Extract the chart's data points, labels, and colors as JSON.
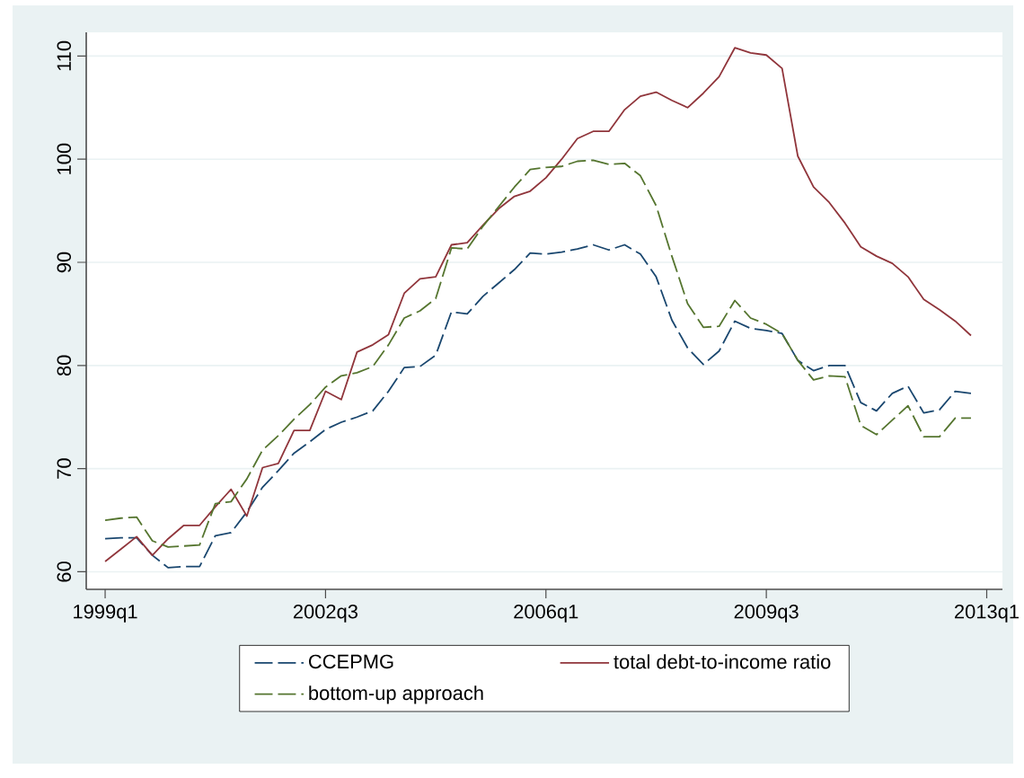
{
  "chart_data": {
    "type": "line",
    "x": [
      "1999-01",
      "1999-04",
      "1999-07",
      "1999-10",
      "2000-01",
      "2000-04",
      "2000-07",
      "2000-10",
      "2001-01",
      "2001-04",
      "2001-07",
      "2001-10",
      "2002-01",
      "2002-04",
      "2002-07",
      "2002-10",
      "2003-01",
      "2003-04",
      "2003-07",
      "2003-10",
      "2004-01",
      "2004-04",
      "2004-07",
      "2004-10",
      "2005-01",
      "2005-04",
      "2005-07",
      "2005-10",
      "2006-01",
      "2006-04",
      "2006-07",
      "2006-10",
      "2007-01",
      "2007-04",
      "2007-07",
      "2007-10",
      "2008-01",
      "2008-04",
      "2008-07",
      "2008-10",
      "2009-01",
      "2009-04",
      "2009-07",
      "2009-10",
      "2010-01",
      "2010-04",
      "2010-07",
      "2010-10",
      "2011-01",
      "2011-04",
      "2011-07",
      "2011-10",
      "2012-01",
      "2012-04",
      "2012-07",
      "2012-10"
    ],
    "series": [
      {
        "name": "CCEPMG",
        "color": "#1a476f",
        "line_style": "dashed",
        "values": [
          63.2,
          63.3,
          63.3,
          61.6,
          60.4,
          60.5,
          60.5,
          63.5,
          63.8,
          65.8,
          68.2,
          69.8,
          71.5,
          72.6,
          73.8,
          74.5,
          75.0,
          75.6,
          77.5,
          79.8,
          79.9,
          81.0,
          85.2,
          85.0,
          86.7,
          88.0,
          89.3,
          90.9,
          90.8,
          91.0,
          91.3,
          91.7,
          91.2,
          91.7,
          90.8,
          88.6,
          84.4,
          81.7,
          80.1,
          81.4,
          84.3,
          83.6,
          83.4,
          83.1,
          80.5,
          79.5,
          80.0,
          80.0,
          76.4,
          75.6,
          77.3,
          78.0,
          75.4,
          75.7,
          77.5,
          77.3
        ]
      },
      {
        "name": "total debt-to-income ratio",
        "color": "#90353b",
        "line_style": "solid",
        "values": [
          61.0,
          62.2,
          63.4,
          61.6,
          63.2,
          64.5,
          64.5,
          66.3,
          68.0,
          65.4,
          70.1,
          70.5,
          73.7,
          73.7,
          77.5,
          76.7,
          81.3,
          82.0,
          83.0,
          87.0,
          88.4,
          88.6,
          91.7,
          91.9,
          93.6,
          95.2,
          96.4,
          96.9,
          98.2,
          100.0,
          102.0,
          102.7,
          102.7,
          104.8,
          106.1,
          106.5,
          105.7,
          105.0,
          106.4,
          108.0,
          110.8,
          110.3,
          110.1,
          108.8,
          100.3,
          97.3,
          95.8,
          93.8,
          91.5,
          90.6,
          89.9,
          88.6,
          86.4,
          85.4,
          84.3,
          82.9
        ]
      },
      {
        "name": "bottom-up approach",
        "color": "#55752f",
        "line_style": "dashed",
        "values": [
          65.0,
          65.2,
          65.3,
          63.0,
          62.4,
          62.5,
          62.6,
          66.6,
          66.8,
          69.0,
          71.8,
          73.2,
          74.8,
          76.2,
          77.9,
          79.0,
          79.3,
          79.9,
          82.0,
          84.6,
          85.3,
          86.5,
          91.4,
          91.3,
          93.5,
          95.4,
          97.3,
          99.0,
          99.2,
          99.3,
          99.8,
          99.9,
          99.5,
          99.6,
          98.4,
          95.5,
          90.6,
          86.0,
          83.7,
          83.8,
          86.3,
          84.6,
          84.0,
          83.1,
          80.5,
          78.6,
          79.0,
          78.9,
          74.2,
          73.3,
          74.7,
          76.1,
          73.1,
          73.1,
          74.9,
          74.9
        ]
      }
    ],
    "xlim": [
      "1998-09-13",
      "2013-04"
    ],
    "xticks": [
      {
        "value": "1999-01",
        "label": "1999q1"
      },
      {
        "value": "2002-07",
        "label": "2002q3"
      },
      {
        "value": "2006-01",
        "label": "2006q1"
      },
      {
        "value": "2009-07",
        "label": "2009q3"
      },
      {
        "value": "2013-01",
        "label": "2013q1"
      }
    ],
    "ylim": [
      58.3,
      112.3
    ],
    "yticks": [
      60,
      70,
      80,
      90,
      100,
      110
    ],
    "grid": "y",
    "legend": "bottom"
  }
}
